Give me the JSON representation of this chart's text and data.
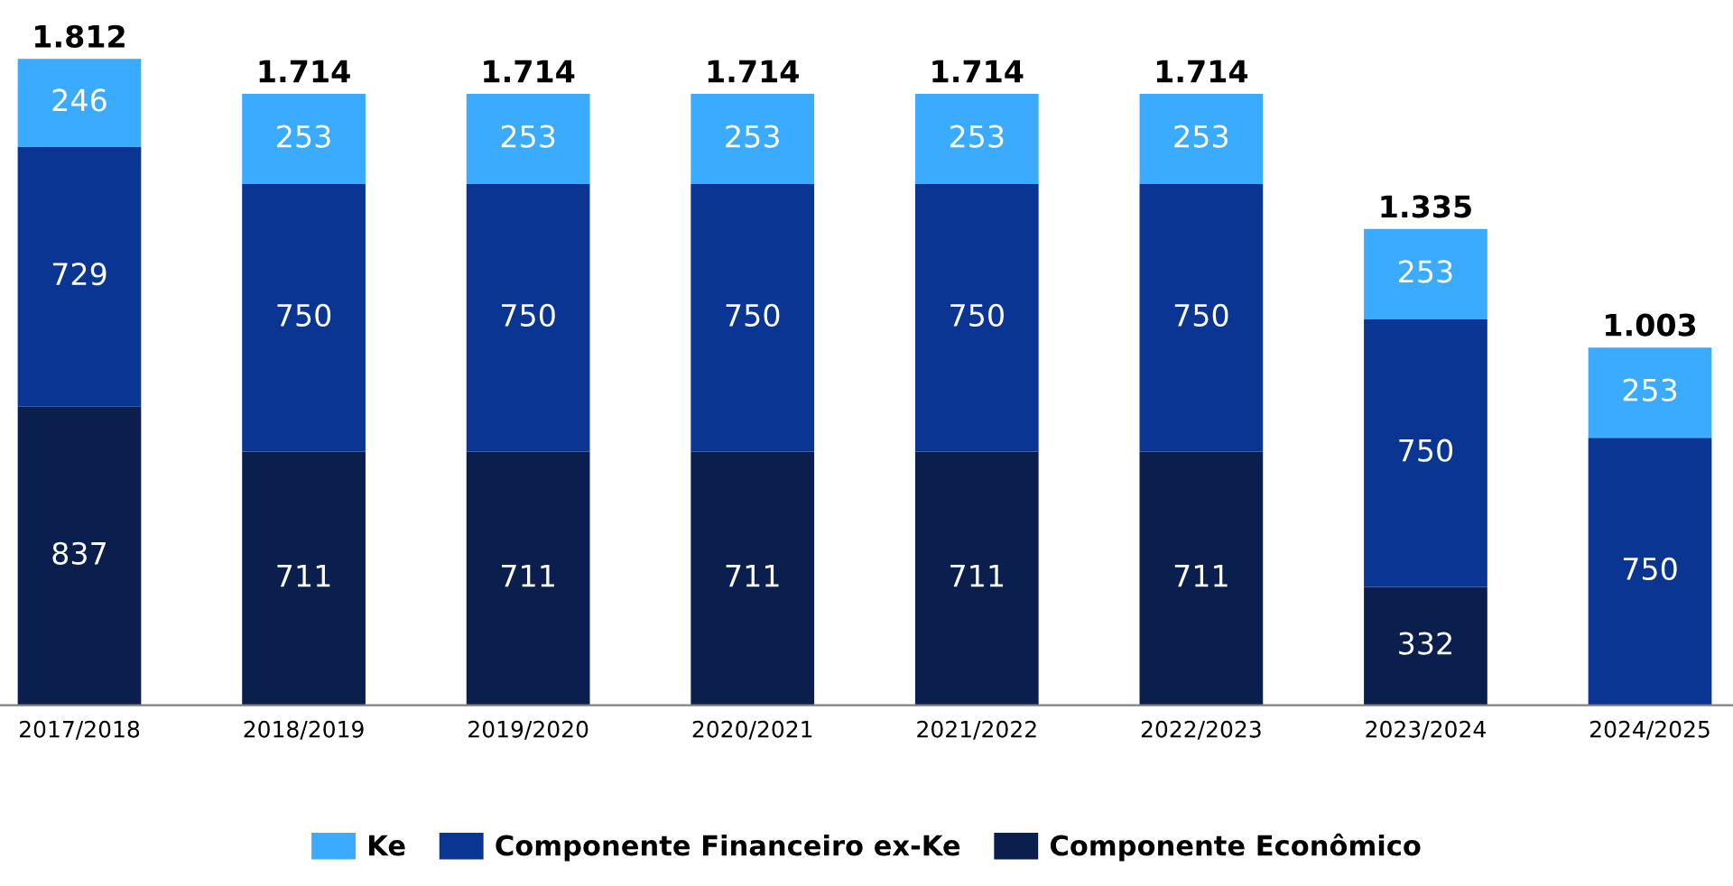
{
  "chart_data": {
    "type": "bar",
    "stacked": true,
    "categories": [
      "2017/2018",
      "2018/2019",
      "2019/2020",
      "2020/2021",
      "2021/2022",
      "2022/2023",
      "2023/2024",
      "2024/2025"
    ],
    "series": [
      {
        "name": "Componente Econômico",
        "color": "#0b1f4f",
        "values": [
          837,
          711,
          711,
          711,
          711,
          711,
          332,
          null
        ]
      },
      {
        "name": "Componente Financeiro ex-Ke",
        "color": "#0a3592",
        "values": [
          729,
          750,
          750,
          750,
          750,
          750,
          750,
          750
        ]
      },
      {
        "name": "Ke",
        "color": "#3aabff",
        "values": [
          246,
          253,
          253,
          253,
          253,
          253,
          253,
          253
        ]
      }
    ],
    "data_labels": true,
    "totals": [
      "1.812",
      "1.714",
      "1.714",
      "1.714",
      "1.714",
      "1.714",
      "1.335",
      "1.003"
    ],
    "legend": "bottom",
    "grid": false
  }
}
